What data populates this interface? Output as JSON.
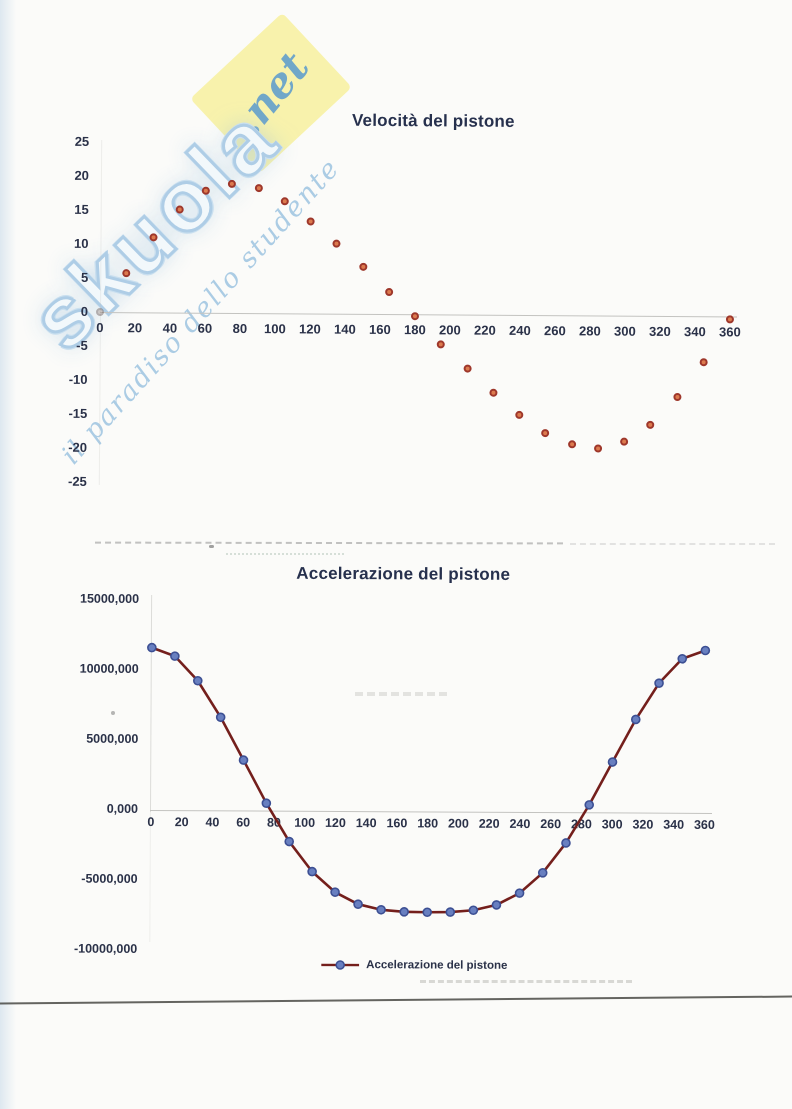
{
  "watermark": {
    "brand": "skuola",
    "suffix": ".net",
    "tagline": "il paradiso dello studente",
    "colors": {
      "brand_outline": "#a6c9e4",
      "suffix_bg": "#f8f2a4",
      "suffix_text": "#4a90c9",
      "tagline_text": "#a3c7e2"
    }
  },
  "chart_data": [
    {
      "type": "scatter",
      "title": "Velocità del pistone",
      "xlabel": "",
      "ylabel": "",
      "xlim": [
        0,
        360
      ],
      "ylim": [
        -25,
        25
      ],
      "grid": false,
      "x_ticks": [
        0,
        20,
        40,
        60,
        80,
        100,
        120,
        140,
        160,
        180,
        200,
        220,
        240,
        260,
        280,
        300,
        320,
        340,
        360
      ],
      "y_ticks": [
        25,
        20,
        15,
        10,
        5,
        0,
        -5,
        -10,
        -15,
        -20,
        -25
      ],
      "x": [
        0,
        15,
        30,
        45,
        60,
        75,
        90,
        105,
        120,
        135,
        150,
        165,
        180,
        195,
        210,
        225,
        240,
        255,
        270,
        285,
        300,
        315,
        330,
        345,
        360
      ],
      "y": [
        0,
        5.8,
        11.0,
        15.2,
        17.9,
        19.0,
        18.4,
        16.4,
        13.6,
        10.3,
        6.9,
        3.2,
        -0.3,
        -4.4,
        -8.0,
        -11.5,
        -14.7,
        -17.3,
        -19.0,
        -19.6,
        -18.6,
        -16.1,
        -11.9,
        -6.7,
        -0.5
      ],
      "marker": {
        "fill": "#dc7a4e",
        "edge": "#9e372b"
      }
    },
    {
      "type": "line",
      "title": "Accelerazione del pistone",
      "legend_label": "Accelerazione del pistone",
      "legend_position": "bottom",
      "xlabel": "",
      "ylabel": "",
      "xlim": [
        0,
        360
      ],
      "ylim": [
        -10000,
        15000
      ],
      "grid": false,
      "x_ticks": [
        0,
        20,
        40,
        60,
        80,
        100,
        120,
        140,
        160,
        180,
        200,
        220,
        240,
        260,
        280,
        300,
        320,
        340,
        360
      ],
      "y_tick_labels": [
        "15000,000",
        "10000,000",
        "5000,000",
        "0,000",
        "-5000,000",
        "-10000,000"
      ],
      "y_tick_values": [
        15000,
        10000,
        5000,
        0,
        -5000,
        -10000
      ],
      "x": [
        0,
        15,
        30,
        45,
        60,
        75,
        90,
        105,
        120,
        135,
        150,
        165,
        180,
        195,
        210,
        225,
        240,
        255,
        270,
        285,
        300,
        315,
        330,
        345,
        360
      ],
      "y": [
        11600,
        11000,
        9250,
        6650,
        3600,
        530,
        -2200,
        -4340,
        -5800,
        -6650,
        -7040,
        -7180,
        -7200,
        -7180,
        -7040,
        -6650,
        -5800,
        -4340,
        -2200,
        530,
        3600,
        6650,
        9250,
        11000,
        11600
      ],
      "line_color": "#741f1c",
      "marker": {
        "fill": "#687fc0",
        "edge": "#3c4f93"
      }
    }
  ]
}
